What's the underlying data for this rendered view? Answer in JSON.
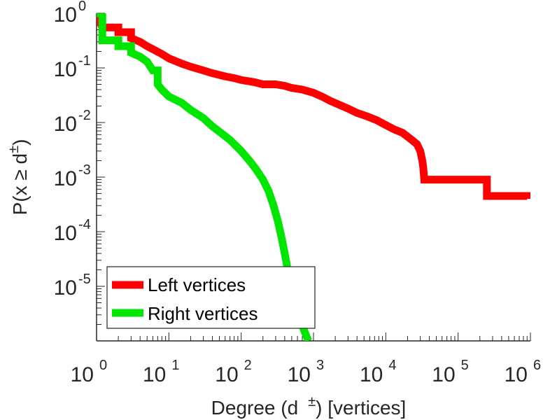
{
  "chart_data": {
    "type": "line",
    "scale": "log-log",
    "title": "",
    "xlabel": {
      "prefix": "Degree (d",
      "sup": "±",
      "suffix": ") [vertices]"
    },
    "ylabel": {
      "prefix": "P(x ≥ d",
      "sup": "±",
      "suffix": ")"
    },
    "xlim": [
      1,
      1000000
    ],
    "ylim": [
      1e-06,
      1
    ],
    "x_ticks": [
      {
        "base": "10",
        "exp": "0",
        "value": 1
      },
      {
        "base": "10",
        "exp": "1",
        "value": 10
      },
      {
        "base": "10",
        "exp": "2",
        "value": 100
      },
      {
        "base": "10",
        "exp": "3",
        "value": 1000
      },
      {
        "base": "10",
        "exp": "4",
        "value": 10000
      },
      {
        "base": "10",
        "exp": "5",
        "value": 100000
      },
      {
        "base": "10",
        "exp": "6",
        "value": 1000000
      }
    ],
    "y_ticks": [
      {
        "base": "10",
        "exp": "0",
        "value": 1
      },
      {
        "base": "10",
        "exp": "-1",
        "value": 0.1
      },
      {
        "base": "10",
        "exp": "-2",
        "value": 0.01
      },
      {
        "base": "10",
        "exp": "-3",
        "value": 0.001
      },
      {
        "base": "10",
        "exp": "-4",
        "value": 0.0001
      },
      {
        "base": "10",
        "exp": "-5",
        "value": 1e-05
      }
    ],
    "legend": {
      "position": "bottom-left"
    },
    "series": [
      {
        "name": "Left vertices",
        "color": "#ff0000",
        "points": [
          [
            1,
            1
          ],
          [
            1.2,
            0.55
          ],
          [
            2,
            0.55
          ],
          [
            2,
            0.45
          ],
          [
            3,
            0.45
          ],
          [
            3,
            0.35
          ],
          [
            4,
            0.3
          ],
          [
            5,
            0.25
          ],
          [
            6,
            0.22
          ],
          [
            8,
            0.18
          ],
          [
            10,
            0.15
          ],
          [
            15,
            0.12
          ],
          [
            20,
            0.105
          ],
          [
            30,
            0.09
          ],
          [
            40,
            0.08
          ],
          [
            60,
            0.07
          ],
          [
            80,
            0.065
          ],
          [
            100,
            0.06
          ],
          [
            150,
            0.055
          ],
          [
            200,
            0.05
          ],
          [
            300,
            0.05
          ],
          [
            400,
            0.047
          ],
          [
            500,
            0.043
          ],
          [
            700,
            0.04
          ],
          [
            1000,
            0.035
          ],
          [
            1300,
            0.03
          ],
          [
            1700,
            0.025
          ],
          [
            2300,
            0.021
          ],
          [
            3000,
            0.018
          ],
          [
            4000,
            0.015
          ],
          [
            5500,
            0.013
          ],
          [
            7500,
            0.011
          ],
          [
            10000,
            0.009
          ],
          [
            13000,
            0.0075
          ],
          [
            17000,
            0.0065
          ],
          [
            22000,
            0.005
          ],
          [
            27000,
            0.004
          ],
          [
            30000,
            0.003
          ],
          [
            32000,
            0.002
          ],
          [
            33000,
            0.0015
          ],
          [
            34000,
            0.0009
          ],
          [
            250000,
            0.0009
          ],
          [
            250000,
            0.00045
          ],
          [
            900000,
            0.00045
          ],
          [
            900000,
            0.0004
          ]
        ]
      },
      {
        "name": "Right vertices",
        "color": "#00e600",
        "points": [
          [
            1,
            1
          ],
          [
            1.2,
            1
          ],
          [
            1.2,
            0.32
          ],
          [
            2,
            0.32
          ],
          [
            2,
            0.25
          ],
          [
            3,
            0.25
          ],
          [
            3,
            0.19
          ],
          [
            4,
            0.16
          ],
          [
            5,
            0.13
          ],
          [
            6,
            0.09
          ],
          [
            7,
            0.09
          ],
          [
            7,
            0.05
          ],
          [
            8,
            0.04
          ],
          [
            10,
            0.03
          ],
          [
            15,
            0.023
          ],
          [
            20,
            0.017
          ],
          [
            30,
            0.012
          ],
          [
            40,
            0.0085
          ],
          [
            50,
            0.0068
          ],
          [
            70,
            0.0048
          ],
          [
            100,
            0.003
          ],
          [
            130,
            0.002
          ],
          [
            160,
            0.0014
          ],
          [
            200,
            0.0009
          ],
          [
            240,
            0.00055
          ],
          [
            280,
            0.0003
          ],
          [
            320,
            0.00016
          ],
          [
            360,
            8e-05
          ],
          [
            400,
            4e-05
          ],
          [
            440,
            2e-05
          ],
          [
            480,
            1e-05
          ],
          [
            550,
            5e-06
          ],
          [
            650,
            2.5e-06
          ],
          [
            750,
            1.5e-06
          ],
          [
            850,
            1e-06
          ]
        ]
      }
    ]
  }
}
